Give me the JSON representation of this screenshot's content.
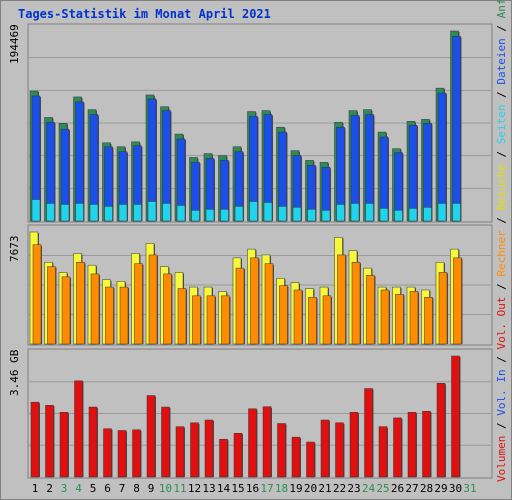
{
  "chart_data": [
    {
      "type": "bar",
      "panel": "top",
      "title": "Tages-Statistik im Monat April 2021",
      "ylabel_max": "194469",
      "ylim": [
        0,
        194469
      ],
      "categories": [
        "1",
        "2",
        "3",
        "4",
        "5",
        "6",
        "7",
        "8",
        "9",
        "10",
        "11",
        "12",
        "13",
        "14",
        "15",
        "16",
        "17",
        "18",
        "19",
        "20",
        "21",
        "22",
        "23",
        "24",
        "25",
        "26",
        "27",
        "28",
        "29",
        "30",
        "31"
      ],
      "series": [
        {
          "name": "Anfragen",
          "color": "#2e8b57",
          "values": [
            133000,
            106000,
            100000,
            127000,
            114000,
            80000,
            76000,
            81000,
            129000,
            117000,
            89000,
            65000,
            69000,
            67000,
            76000,
            112000,
            113000,
            96000,
            72000,
            62000,
            60000,
            101000,
            113000,
            114000,
            91000,
            74000,
            102000,
            104000,
            136000,
            194469,
            null
          ]
        },
        {
          "name": "Dateien",
          "color": "#1c4fe8",
          "values": [
            128000,
            101000,
            94000,
            122000,
            109000,
            76000,
            71000,
            77000,
            125000,
            113000,
            84000,
            60000,
            64000,
            62000,
            71000,
            107000,
            109000,
            91000,
            67000,
            57000,
            55000,
            96000,
            108000,
            109000,
            86000,
            70000,
            98000,
            100000,
            131000,
            189000,
            null
          ]
        },
        {
          "name": "Seiten",
          "color": "#22d3ee",
          "values": [
            22000,
            18000,
            17000,
            18000,
            17000,
            15000,
            17000,
            17000,
            20000,
            18000,
            16000,
            11000,
            12000,
            12000,
            15000,
            20000,
            19000,
            15000,
            14000,
            12000,
            11000,
            17000,
            18000,
            18000,
            13000,
            11000,
            13000,
            14000,
            18000,
            18000,
            null
          ]
        }
      ],
      "legend": [
        "Anfragen",
        "Dateien",
        "Seiten"
      ]
    },
    {
      "type": "bar",
      "panel": "middle",
      "ylabel_max": "7673",
      "ylim": [
        0,
        7673
      ],
      "series": [
        {
          "name": "Besuche",
          "color": "#f8f83a",
          "values": [
            7673,
            5600,
            4900,
            6200,
            5400,
            4400,
            4300,
            6200,
            6900,
            5300,
            4900,
            3900,
            3900,
            3600,
            5900,
            6500,
            6100,
            4500,
            4200,
            3800,
            3900,
            7300,
            6400,
            5200,
            3900,
            3900,
            3900,
            3700,
            5600,
            6500,
            null
          ]
        },
        {
          "name": "Rechner",
          "color": "#ff8c00",
          "values": [
            6800,
            5300,
            4600,
            5600,
            4800,
            3900,
            3900,
            5500,
            6100,
            4800,
            3800,
            3300,
            3300,
            3300,
            5200,
            5900,
            5500,
            4000,
            3700,
            3200,
            3300,
            6100,
            5600,
            4700,
            3700,
            3400,
            3600,
            3200,
            4900,
            5900,
            null
          ]
        }
      ],
      "legend": [
        "Besuche",
        "Rechner",
        "Vol. Out"
      ]
    },
    {
      "type": "bar",
      "panel": "bottom",
      "ylabel_max": "3.46 GB",
      "ylim": [
        0,
        3.46
      ],
      "series": [
        {
          "name": "Vol. In",
          "color": "#e01010",
          "values": [
            2.14,
            2.05,
            1.85,
            2.75,
            2.0,
            1.38,
            1.33,
            1.35,
            2.33,
            2.0,
            1.44,
            1.55,
            1.63,
            1.08,
            1.25,
            1.95,
            2.01,
            1.53,
            1.14,
            1.0,
            1.63,
            1.55,
            1.85,
            2.53,
            1.44,
            1.69,
            1.85,
            1.88,
            2.68,
            3.46,
            null
          ]
        }
      ],
      "legend": [
        "Volumen",
        "Vol. In"
      ]
    }
  ],
  "weekend_days": [
    "3",
    "4",
    "10",
    "11",
    "17",
    "18",
    "24",
    "25",
    "31"
  ]
}
